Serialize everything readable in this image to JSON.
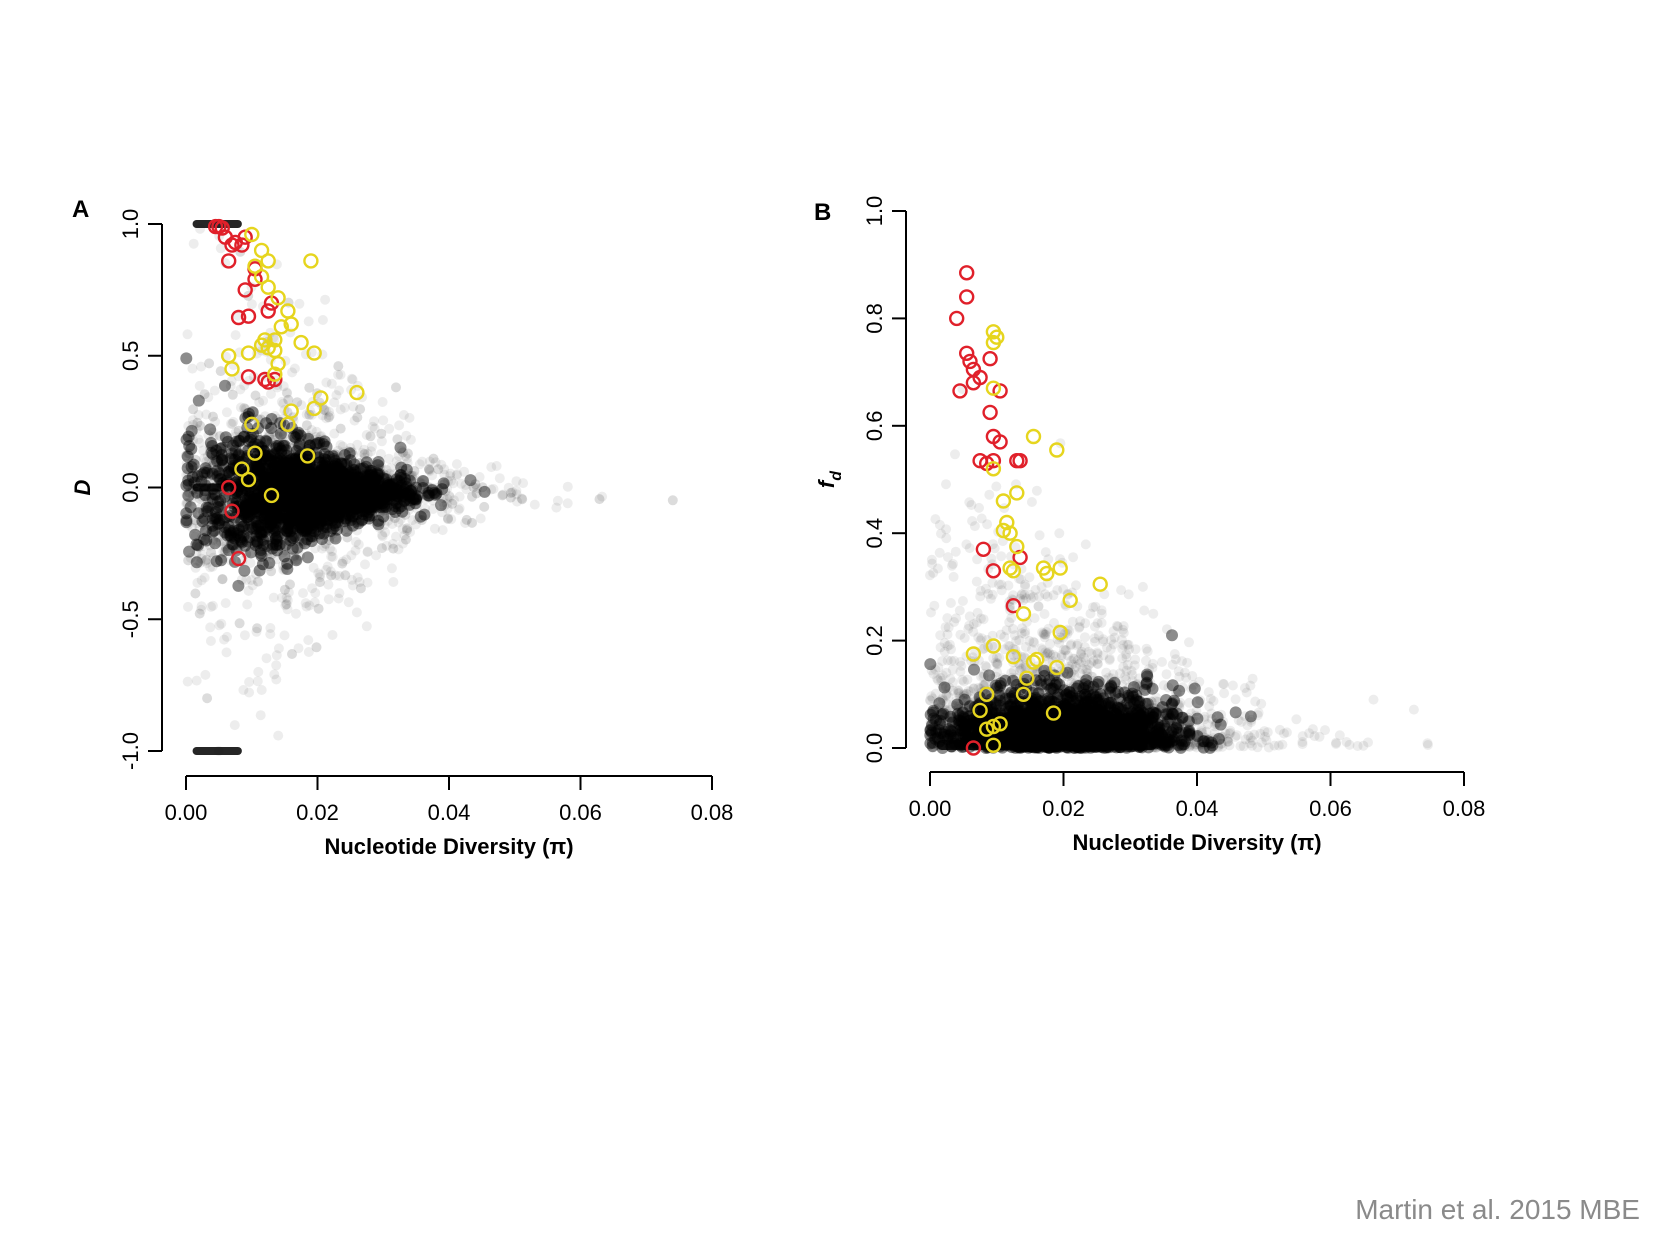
{
  "citation": "Martin et al. 2015 MBE",
  "colors": {
    "background_points": "#000000",
    "red": "#e0202a",
    "yellow": "#e6d51e"
  },
  "chart_data": [
    {
      "panel": "A",
      "type": "scatter",
      "xlabel": "Nucleotide Diversity (π)",
      "ylabel": "D",
      "xlim": [
        0.0,
        0.08
      ],
      "ylim": [
        -1.0,
        1.0
      ],
      "xticks": [
        "0.00",
        "0.02",
        "0.04",
        "0.06",
        "0.08"
      ],
      "yticks": [
        "-1.0",
        "-0.5",
        "0.0",
        "0.5",
        "1.0"
      ],
      "grid": false,
      "background": {
        "description_level": "dense cloud of semi-transparent black points",
        "core_center": [
          0.018,
          -0.02
        ],
        "core_spread": [
          0.009,
          0.16
        ],
        "tail_max_x": 0.076,
        "lines_at_y": [
          1.0,
          0.0,
          -1.0
        ]
      },
      "series": [
        {
          "color": "red",
          "points": [
            [
              0.005,
              0.99
            ],
            [
              0.0055,
              0.985
            ],
            [
              0.0045,
              0.99
            ],
            [
              0.006,
              0.95
            ],
            [
              0.0075,
              0.93
            ],
            [
              0.0085,
              0.92
            ],
            [
              0.009,
              0.95
            ],
            [
              0.007,
              0.92
            ],
            [
              0.0065,
              0.86
            ],
            [
              0.0105,
              0.83
            ],
            [
              0.0105,
              0.79
            ],
            [
              0.009,
              0.75
            ],
            [
              0.013,
              0.7
            ],
            [
              0.0125,
              0.67
            ],
            [
              0.0095,
              0.65
            ],
            [
              0.008,
              0.645
            ],
            [
              0.0095,
              0.42
            ],
            [
              0.012,
              0.41
            ],
            [
              0.0125,
              0.4
            ],
            [
              0.0135,
              0.41
            ],
            [
              0.0065,
              0.0
            ],
            [
              0.007,
              -0.09
            ],
            [
              0.008,
              -0.27
            ]
          ]
        },
        {
          "color": "yellow",
          "points": [
            [
              0.01,
              0.96
            ],
            [
              0.0115,
              0.9
            ],
            [
              0.0125,
              0.86
            ],
            [
              0.0105,
              0.84
            ],
            [
              0.0115,
              0.8
            ],
            [
              0.0125,
              0.76
            ],
            [
              0.014,
              0.72
            ],
            [
              0.0155,
              0.67
            ],
            [
              0.016,
              0.62
            ],
            [
              0.0145,
              0.61
            ],
            [
              0.0135,
              0.56
            ],
            [
              0.012,
              0.56
            ],
            [
              0.0115,
              0.54
            ],
            [
              0.0125,
              0.53
            ],
            [
              0.0135,
              0.52
            ],
            [
              0.0095,
              0.51
            ],
            [
              0.0065,
              0.5
            ],
            [
              0.0195,
              0.51
            ],
            [
              0.0175,
              0.55
            ],
            [
              0.014,
              0.47
            ],
            [
              0.0135,
              0.43
            ],
            [
              0.007,
              0.45
            ],
            [
              0.0205,
              0.34
            ],
            [
              0.026,
              0.36
            ],
            [
              0.016,
              0.29
            ],
            [
              0.0195,
              0.3
            ],
            [
              0.0155,
              0.24
            ],
            [
              0.01,
              0.24
            ],
            [
              0.0185,
              0.12
            ],
            [
              0.0105,
              0.13
            ],
            [
              0.0085,
              0.07
            ],
            [
              0.0095,
              0.03
            ],
            [
              0.013,
              -0.03
            ],
            [
              0.019,
              0.86
            ]
          ]
        }
      ]
    },
    {
      "panel": "B",
      "type": "scatter",
      "xlabel": "Nucleotide Diversity (π)",
      "ylabel": "fd",
      "xlim": [
        0.0,
        0.08
      ],
      "ylim": [
        0.0,
        1.0
      ],
      "xticks": [
        "0.00",
        "0.02",
        "0.04",
        "0.06",
        "0.08"
      ],
      "yticks": [
        "0.0",
        "0.2",
        "0.4",
        "0.6",
        "0.8",
        "1.0"
      ],
      "grid": false,
      "background": {
        "description_level": "dense cloud of semi-transparent black points",
        "core_center": [
          0.02,
          0.05
        ],
        "core_spread": [
          0.01,
          0.07
        ],
        "tail_max_x": 0.076
      },
      "series": [
        {
          "color": "red",
          "points": [
            [
              0.0055,
              0.885
            ],
            [
              0.0055,
              0.84
            ],
            [
              0.004,
              0.8
            ],
            [
              0.0055,
              0.735
            ],
            [
              0.006,
              0.72
            ],
            [
              0.0065,
              0.705
            ],
            [
              0.0075,
              0.69
            ],
            [
              0.0065,
              0.68
            ],
            [
              0.0045,
              0.665
            ],
            [
              0.0105,
              0.665
            ],
            [
              0.009,
              0.725
            ],
            [
              0.009,
              0.625
            ],
            [
              0.0095,
              0.58
            ],
            [
              0.0105,
              0.57
            ],
            [
              0.0075,
              0.535
            ],
            [
              0.0085,
              0.53
            ],
            [
              0.0095,
              0.535
            ],
            [
              0.013,
              0.535
            ],
            [
              0.0135,
              0.535
            ],
            [
              0.008,
              0.37
            ],
            [
              0.0135,
              0.355
            ],
            [
              0.0095,
              0.33
            ],
            [
              0.0125,
              0.265
            ],
            [
              0.0065,
              0.0
            ]
          ]
        },
        {
          "color": "yellow",
          "points": [
            [
              0.0095,
              0.775
            ],
            [
              0.01,
              0.765
            ],
            [
              0.0095,
              0.755
            ],
            [
              0.0095,
              0.67
            ],
            [
              0.0155,
              0.58
            ],
            [
              0.019,
              0.555
            ],
            [
              0.0095,
              0.52
            ],
            [
              0.013,
              0.475
            ],
            [
              0.011,
              0.46
            ],
            [
              0.0115,
              0.42
            ],
            [
              0.011,
              0.405
            ],
            [
              0.012,
              0.4
            ],
            [
              0.013,
              0.375
            ],
            [
              0.012,
              0.335
            ],
            [
              0.0125,
              0.33
            ],
            [
              0.017,
              0.335
            ],
            [
              0.0195,
              0.335
            ],
            [
              0.0175,
              0.325
            ],
            [
              0.0255,
              0.305
            ],
            [
              0.021,
              0.275
            ],
            [
              0.014,
              0.25
            ],
            [
              0.0195,
              0.215
            ],
            [
              0.0095,
              0.19
            ],
            [
              0.0065,
              0.175
            ],
            [
              0.0125,
              0.17
            ],
            [
              0.016,
              0.165
            ],
            [
              0.0155,
              0.16
            ],
            [
              0.019,
              0.15
            ],
            [
              0.0145,
              0.13
            ],
            [
              0.0085,
              0.1
            ],
            [
              0.014,
              0.1
            ],
            [
              0.0075,
              0.07
            ],
            [
              0.0185,
              0.065
            ],
            [
              0.0105,
              0.045
            ],
            [
              0.0095,
              0.04
            ],
            [
              0.0085,
              0.035
            ],
            [
              0.0095,
              0.005
            ]
          ]
        }
      ]
    }
  ]
}
